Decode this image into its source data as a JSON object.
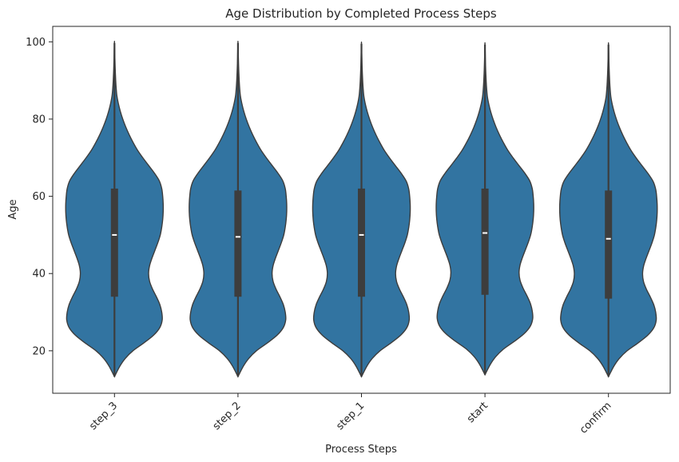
{
  "chart_data": {
    "type": "violin",
    "title": "Age Distribution by Completed Process Steps",
    "xlabel": "Process Steps",
    "ylabel": "Age",
    "categories": [
      "step_3",
      "step_2",
      "step_1",
      "start",
      "confirm"
    ],
    "ylim": [
      9,
      104
    ],
    "yticks": [
      20,
      40,
      60,
      80,
      100
    ],
    "grid": false,
    "color": "#3274a1",
    "edge_color": "#3d3d3d",
    "violins": [
      {
        "category": "step_3",
        "min": 13.3,
        "max": 99.7,
        "q1": 34.0,
        "median": 50.0,
        "q3": 62.0
      },
      {
        "category": "step_2",
        "min": 13.3,
        "max": 99.7,
        "q1": 34.0,
        "median": 49.5,
        "q3": 61.5
      },
      {
        "category": "step_1",
        "min": 13.3,
        "max": 99.5,
        "q1": 34.0,
        "median": 50.0,
        "q3": 62.0
      },
      {
        "category": "start",
        "min": 13.8,
        "max": 99.3,
        "q1": 34.5,
        "median": 50.5,
        "q3": 62.0
      },
      {
        "category": "confirm",
        "min": 13.3,
        "max": 99.3,
        "q1": 33.5,
        "median": 49.0,
        "q3": 61.5
      }
    ],
    "density_profile": [
      [
        13.3,
        0.0
      ],
      [
        16,
        0.11
      ],
      [
        18,
        0.22
      ],
      [
        20,
        0.38
      ],
      [
        22,
        0.6
      ],
      [
        24,
        0.8
      ],
      [
        26,
        0.93
      ],
      [
        28,
        0.98
      ],
      [
        30,
        0.97
      ],
      [
        32,
        0.93
      ],
      [
        34,
        0.86
      ],
      [
        36,
        0.78
      ],
      [
        38,
        0.72
      ],
      [
        40,
        0.7
      ],
      [
        42,
        0.72
      ],
      [
        44,
        0.77
      ],
      [
        46,
        0.83
      ],
      [
        48,
        0.89
      ],
      [
        50,
        0.94
      ],
      [
        52,
        0.97
      ],
      [
        54,
        0.99
      ],
      [
        56,
        1.0
      ],
      [
        58,
        1.0
      ],
      [
        60,
        0.99
      ],
      [
        62,
        0.97
      ],
      [
        64,
        0.92
      ],
      [
        66,
        0.82
      ],
      [
        68,
        0.7
      ],
      [
        70,
        0.58
      ],
      [
        72,
        0.47
      ],
      [
        74,
        0.38
      ],
      [
        76,
        0.3
      ],
      [
        78,
        0.23
      ],
      [
        80,
        0.17
      ],
      [
        82,
        0.12
      ],
      [
        84,
        0.08
      ],
      [
        86,
        0.05
      ],
      [
        88,
        0.035
      ],
      [
        90,
        0.025
      ],
      [
        93,
        0.015
      ],
      [
        96,
        0.008
      ],
      [
        99.7,
        0.0
      ]
    ]
  }
}
